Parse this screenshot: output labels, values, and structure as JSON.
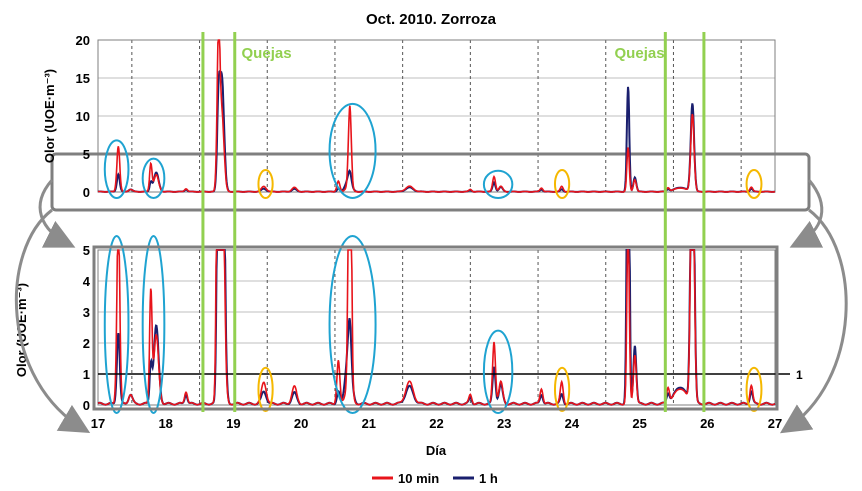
{
  "chart_data": {
    "type": "line",
    "title": "Oct. 2010. Zorroza",
    "xlabel": "Día",
    "x_ticks": [
      17,
      18,
      19,
      20,
      21,
      22,
      23,
      24,
      25,
      26,
      27
    ],
    "xlim": [
      17,
      27
    ],
    "series": [
      {
        "name": "10 min",
        "color": "#e8141b"
      },
      {
        "name": "1 h",
        "color": "#1a1f6e"
      }
    ],
    "panels": [
      {
        "ylabel": "Olor (UOE·m⁻³)",
        "ylim": [
          0,
          20
        ],
        "y_ticks": [
          0,
          5,
          10,
          15,
          20
        ]
      },
      {
        "ylabel": "Olor (UOE·m⁻³)",
        "ylim": [
          0,
          5
        ],
        "y_ticks": [
          0,
          1,
          2,
          3,
          4,
          5
        ],
        "reference_line": {
          "y": 1,
          "label": "1"
        }
      }
    ],
    "peaks": [
      {
        "x": 17.3,
        "w": 0.03,
        "a10": 6.0,
        "a1h": 2.3
      },
      {
        "x": 17.48,
        "w": 0.04,
        "a10": 0.3,
        "a1h": 0.3
      },
      {
        "x": 17.78,
        "w": 0.025,
        "a10": 3.6,
        "a1h": 1.2
      },
      {
        "x": 17.86,
        "w": 0.05,
        "a10": 2.2,
        "a1h": 2.5
      },
      {
        "x": 18.3,
        "w": 0.03,
        "a10": 0.4,
        "a1h": 0.3
      },
      {
        "x": 18.78,
        "w": 0.03,
        "a10": 19.3,
        "a1h": 10.0
      },
      {
        "x": 18.83,
        "w": 0.045,
        "a10": 10.0,
        "a1h": 14.8
      },
      {
        "x": 19.45,
        "w": 0.05,
        "a10": 0.7,
        "a1h": 0.4
      },
      {
        "x": 19.9,
        "w": 0.05,
        "a10": 0.55,
        "a1h": 0.35
      },
      {
        "x": 20.55,
        "w": 0.03,
        "a10": 1.4,
        "a1h": 0.4
      },
      {
        "x": 20.72,
        "w": 0.03,
        "a10": 10.8,
        "a1h": 1.2
      },
      {
        "x": 20.7,
        "w": 0.06,
        "a10": 0.6,
        "a1h": 1.7
      },
      {
        "x": 21.6,
        "w": 0.08,
        "a10": 0.7,
        "a1h": 0.55
      },
      {
        "x": 22.5,
        "w": 0.03,
        "a10": 0.3,
        "a1h": 0.2
      },
      {
        "x": 22.85,
        "w": 0.03,
        "a10": 2.0,
        "a1h": 1.2
      },
      {
        "x": 22.95,
        "w": 0.04,
        "a10": 0.7,
        "a1h": 0.6
      },
      {
        "x": 23.55,
        "w": 0.03,
        "a10": 0.5,
        "a1h": 0.3
      },
      {
        "x": 23.85,
        "w": 0.03,
        "a10": 0.7,
        "a1h": 0.3
      },
      {
        "x": 24.83,
        "w": 0.025,
        "a10": 5.8,
        "a1h": 13.8
      },
      {
        "x": 24.93,
        "w": 0.03,
        "a10": 1.6,
        "a1h": 1.9
      },
      {
        "x": 25.42,
        "w": 0.03,
        "a10": 0.5,
        "a1h": 0.3
      },
      {
        "x": 25.6,
        "w": 0.12,
        "a10": 0.5,
        "a1h": 0.55
      },
      {
        "x": 25.78,
        "w": 0.035,
        "a10": 10.2,
        "a1h": 11.6
      },
      {
        "x": 26.65,
        "w": 0.03,
        "a10": 0.6,
        "a1h": 0.4
      }
    ],
    "complaints": {
      "label": "Quejas",
      "days": [
        18.55,
        19.02,
        25.38,
        25.95
      ],
      "color": "#92d050"
    },
    "highlight_ellipses": {
      "blue": [
        [
          17.1,
          17.45
        ],
        [
          17.66,
          17.98
        ],
        [
          20.42,
          21.1
        ],
        [
          22.7,
          23.12
        ]
      ],
      "orange": [
        [
          19.37,
          19.58
        ],
        [
          23.75,
          23.96
        ],
        [
          26.58,
          26.8
        ]
      ],
      "blue_color": "#1fa3d1",
      "orange_color": "#f5b800"
    },
    "legend": {
      "position": "bottom-center"
    },
    "grid": {
      "vertical_dashed": true,
      "horizontal": true
    }
  }
}
